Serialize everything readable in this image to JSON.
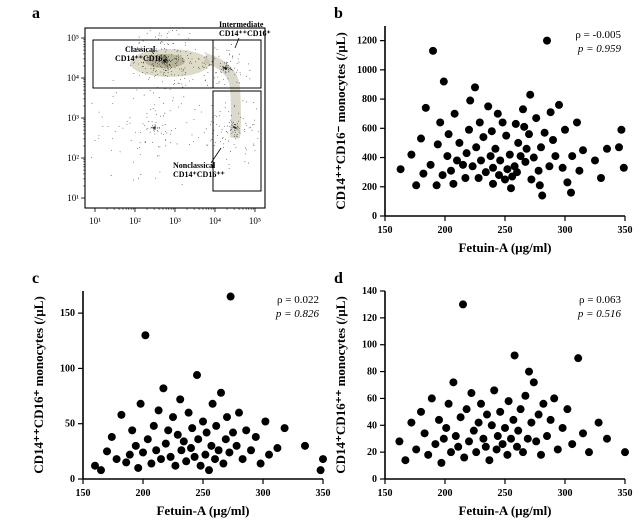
{
  "panels": {
    "a": {
      "label": "a"
    },
    "b": {
      "label": "b",
      "xlabel": "Fetuin-A (µg/ml)",
      "ylabel": "CD14⁺⁺CD16⁻ monocytes (/µL)",
      "xlim": [
        150,
        350
      ],
      "xtick_step": 50,
      "ylim": [
        0,
        1300
      ],
      "ytick_step": 200,
      "stats_rho": "ρ = -0.005",
      "stats_p": "p = 0.959",
      "marker_color": "#000000",
      "marker_radius": 4,
      "points": [
        [
          163,
          320
        ],
        [
          172,
          420
        ],
        [
          176,
          210
        ],
        [
          180,
          530
        ],
        [
          182,
          290
        ],
        [
          184,
          740
        ],
        [
          188,
          350
        ],
        [
          190,
          1130
        ],
        [
          193,
          210
        ],
        [
          194,
          490
        ],
        [
          196,
          640
        ],
        [
          198,
          280
        ],
        [
          199,
          920
        ],
        [
          202,
          410
        ],
        [
          203,
          560
        ],
        [
          205,
          310
        ],
        [
          207,
          220
        ],
        [
          208,
          700
        ],
        [
          210,
          380
        ],
        [
          212,
          500
        ],
        [
          215,
          350
        ],
        [
          217,
          260
        ],
        [
          218,
          430
        ],
        [
          220,
          590
        ],
        [
          221,
          790
        ],
        [
          223,
          340
        ],
        [
          225,
          880
        ],
        [
          226,
          470
        ],
        [
          228,
          260
        ],
        [
          229,
          640
        ],
        [
          230,
          380
        ],
        [
          232,
          540
        ],
        [
          234,
          300
        ],
        [
          236,
          750
        ],
        [
          238,
          410
        ],
        [
          239,
          580
        ],
        [
          240,
          220
        ],
        [
          240,
          330
        ],
        [
          242,
          460
        ],
        [
          244,
          700
        ],
        [
          245,
          280
        ],
        [
          246,
          380
        ],
        [
          248,
          640
        ],
        [
          250,
          250
        ],
        [
          251,
          550
        ],
        [
          252,
          320
        ],
        [
          254,
          420
        ],
        [
          255,
          190
        ],
        [
          256,
          270
        ],
        [
          258,
          340
        ],
        [
          259,
          630
        ],
        [
          260,
          300
        ],
        [
          261,
          500
        ],
        [
          263,
          410
        ],
        [
          265,
          730
        ],
        [
          266,
          610
        ],
        [
          267,
          370
        ],
        [
          268,
          460
        ],
        [
          270,
          560
        ],
        [
          271,
          830
        ],
        [
          272,
          250
        ],
        [
          274,
          400
        ],
        [
          276,
          670
        ],
        [
          278,
          310
        ],
        [
          279,
          210
        ],
        [
          280,
          470
        ],
        [
          281,
          140
        ],
        [
          283,
          570
        ],
        [
          285,
          1200
        ],
        [
          287,
          340
        ],
        [
          288,
          710
        ],
        [
          290,
          520
        ],
        [
          292,
          410
        ],
        [
          295,
          760
        ],
        [
          298,
          330
        ],
        [
          300,
          590
        ],
        [
          302,
          230
        ],
        [
          305,
          160
        ],
        [
          306,
          410
        ],
        [
          310,
          640
        ],
        [
          312,
          310
        ],
        [
          315,
          450
        ],
        [
          325,
          380
        ],
        [
          330,
          260
        ],
        [
          335,
          460
        ],
        [
          345,
          470
        ],
        [
          347,
          590
        ],
        [
          349,
          330
        ]
      ]
    },
    "c": {
      "label": "c",
      "xlabel": "Fetuin-A (µg/ml)",
      "ylabel": "CD14⁺⁺CD16⁺ monocytes (/µL)",
      "xlim": [
        150,
        350
      ],
      "xtick_step": 50,
      "ylim": [
        0,
        170
      ],
      "ytick_step": 50,
      "ytick_max_shown": 150,
      "stats_rho": "ρ = 0.022",
      "stats_p": "p = 0.826",
      "marker_color": "#000000",
      "marker_radius": 4,
      "points": [
        [
          160,
          12
        ],
        [
          165,
          8
        ],
        [
          170,
          25
        ],
        [
          174,
          38
        ],
        [
          178,
          18
        ],
        [
          182,
          58
        ],
        [
          186,
          15
        ],
        [
          189,
          22
        ],
        [
          191,
          44
        ],
        [
          194,
          30
        ],
        [
          196,
          10
        ],
        [
          198,
          68
        ],
        [
          200,
          24
        ],
        [
          202,
          130
        ],
        [
          204,
          36
        ],
        [
          207,
          14
        ],
        [
          209,
          48
        ],
        [
          211,
          26
        ],
        [
          213,
          62
        ],
        [
          215,
          18
        ],
        [
          217,
          82
        ],
        [
          219,
          32
        ],
        [
          221,
          44
        ],
        [
          223,
          20
        ],
        [
          225,
          56
        ],
        [
          227,
          12
        ],
        [
          229,
          40
        ],
        [
          231,
          72
        ],
        [
          232,
          26
        ],
        [
          234,
          34
        ],
        [
          236,
          16
        ],
        [
          238,
          60
        ],
        [
          240,
          28
        ],
        [
          241,
          46
        ],
        [
          243,
          20
        ],
        [
          245,
          94
        ],
        [
          246,
          36
        ],
        [
          248,
          12
        ],
        [
          250,
          52
        ],
        [
          252,
          22
        ],
        [
          253,
          42
        ],
        [
          255,
          8
        ],
        [
          257,
          30
        ],
        [
          258,
          68
        ],
        [
          260,
          18
        ],
        [
          261,
          48
        ],
        [
          263,
          26
        ],
        [
          265,
          78
        ],
        [
          267,
          14
        ],
        [
          269,
          36
        ],
        [
          270,
          56
        ],
        [
          272,
          24
        ],
        [
          273,
          165
        ],
        [
          275,
          42
        ],
        [
          278,
          30
        ],
        [
          280,
          60
        ],
        [
          283,
          18
        ],
        [
          286,
          44
        ],
        [
          290,
          26
        ],
        [
          294,
          38
        ],
        [
          298,
          14
        ],
        [
          302,
          52
        ],
        [
          305,
          22
        ],
        [
          312,
          28
        ],
        [
          318,
          46
        ],
        [
          335,
          30
        ],
        [
          348,
          8
        ],
        [
          350,
          18
        ]
      ]
    },
    "d": {
      "label": "d",
      "xlabel": "Fetuin-A (µg/ml)",
      "ylabel": "CD14⁺CD16⁺⁺ monocytes (/µL)",
      "xlim": [
        150,
        350
      ],
      "xtick_step": 50,
      "ylim": [
        0,
        140
      ],
      "ytick_step": 20,
      "stats_rho": "ρ = 0.063",
      "stats_p": "p = 0.516",
      "marker_color": "#000000",
      "marker_radius": 4,
      "points": [
        [
          162,
          28
        ],
        [
          167,
          14
        ],
        [
          172,
          42
        ],
        [
          176,
          22
        ],
        [
          180,
          50
        ],
        [
          183,
          34
        ],
        [
          186,
          18
        ],
        [
          189,
          60
        ],
        [
          192,
          26
        ],
        [
          195,
          44
        ],
        [
          197,
          12
        ],
        [
          199,
          30
        ],
        [
          201,
          38
        ],
        [
          203,
          56
        ],
        [
          205,
          20
        ],
        [
          207,
          72
        ],
        [
          209,
          32
        ],
        [
          211,
          24
        ],
        [
          213,
          46
        ],
        [
          215,
          130
        ],
        [
          216,
          16
        ],
        [
          218,
          52
        ],
        [
          220,
          28
        ],
        [
          222,
          64
        ],
        [
          224,
          36
        ],
        [
          226,
          20
        ],
        [
          228,
          42
        ],
        [
          230,
          56
        ],
        [
          232,
          30
        ],
        [
          234,
          24
        ],
        [
          235,
          48
        ],
        [
          237,
          14
        ],
        [
          239,
          40
        ],
        [
          241,
          66
        ],
        [
          243,
          22
        ],
        [
          244,
          32
        ],
        [
          246,
          50
        ],
        [
          248,
          26
        ],
        [
          250,
          38
        ],
        [
          252,
          18
        ],
        [
          253,
          58
        ],
        [
          255,
          30
        ],
        [
          257,
          44
        ],
        [
          258,
          92
        ],
        [
          260,
          24
        ],
        [
          261,
          36
        ],
        [
          263,
          52
        ],
        [
          265,
          20
        ],
        [
          267,
          62
        ],
        [
          269,
          30
        ],
        [
          270,
          80
        ],
        [
          272,
          42
        ],
        [
          274,
          72
        ],
        [
          276,
          28
        ],
        [
          278,
          48
        ],
        [
          280,
          18
        ],
        [
          282,
          56
        ],
        [
          285,
          32
        ],
        [
          288,
          44
        ],
        [
          291,
          60
        ],
        [
          294,
          22
        ],
        [
          298,
          38
        ],
        [
          302,
          52
        ],
        [
          306,
          26
        ],
        [
          311,
          90
        ],
        [
          315,
          34
        ],
        [
          320,
          20
        ],
        [
          328,
          42
        ],
        [
          335,
          30
        ],
        [
          350,
          20
        ]
      ]
    }
  },
  "facs": {
    "xticks": [
      "10¹",
      "10²",
      "10³",
      "10⁴",
      "10⁵"
    ],
    "yticks": [
      "10¹",
      "10²",
      "10³",
      "10⁴",
      "10⁵"
    ],
    "classical_label": "Classical\nCD14⁺⁺CD16⁻",
    "intermediate_label": "Intermediate\nCD14⁺⁺CD16⁺",
    "nonclassical_label": "Nonclassical\nCD14⁺CD16⁺⁺",
    "gate_color": "#000000",
    "density_high": "#b8b49a",
    "density_mid": "#dedcc8"
  },
  "layout": {
    "bg": "#ffffff",
    "axis_linewidth": 1.6,
    "label_fontsize": 13,
    "tick_fontsize": 10
  }
}
